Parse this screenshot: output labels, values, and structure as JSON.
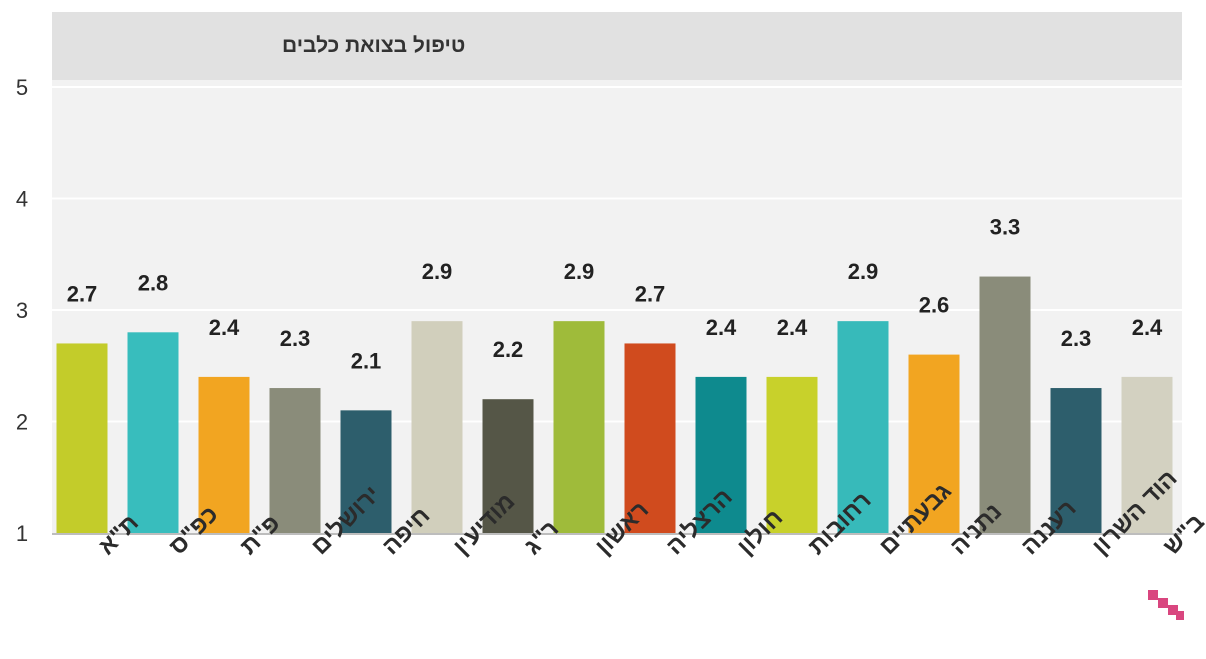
{
  "chart_data": {
    "type": "bar",
    "title": "טיפול בצואת כלבים",
    "categories": [
      "ת\"א",
      "כפ\"ס",
      "פ\"ת",
      "ירושלים",
      "חיפה",
      "מודיעין",
      "ר\"ג",
      "ראשון",
      "הרצליה",
      "חולון",
      "רחובות",
      "גבעתיים",
      "נתניה",
      "רעננה",
      "הוד השרון",
      "ב\"ש"
    ],
    "values": [
      2.7,
      2.8,
      2.4,
      2.3,
      2.1,
      2.9,
      2.2,
      2.9,
      2.7,
      2.4,
      2.4,
      2.9,
      2.6,
      3.3,
      2.3,
      2.4
    ],
    "value_labels": [
      "2.7",
      "2.8",
      "2.4",
      "2.3",
      "2.1",
      "2.9",
      "2.2",
      "2.9",
      "2.7",
      "2.4",
      "2.4",
      "2.9",
      "2.6",
      "3.3",
      "2.3",
      "2.4"
    ],
    "colors": [
      "#c3cc2a",
      "#38bdbd",
      "#f2a521",
      "#8a8c7a",
      "#2d5e6c",
      "#d1cfbc",
      "#555647",
      "#9fbb3a",
      "#d04b1e",
      "#0e8a8e",
      "#c8d12b",
      "#37baba",
      "#f2a521",
      "#8a8c7a",
      "#2d5e6c",
      "#d3d1c1"
    ],
    "yticks": [
      "1",
      "2",
      "3",
      "4",
      "5"
    ],
    "ylim": [
      1,
      5
    ],
    "grid": true,
    "xlabel": "",
    "ylabel": ""
  }
}
